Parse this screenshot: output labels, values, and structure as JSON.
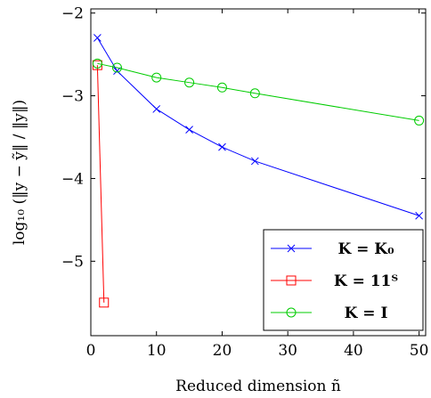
{
  "chart_data": {
    "type": "line",
    "xlabel": "Reduced dimension ñ",
    "ylabel": "log₁₀ (‖y − ỹ‖ / ‖y‖)",
    "xlim": [
      0,
      51
    ],
    "ylim": [
      -5.9,
      -1.95
    ],
    "xticks": [
      0,
      10,
      20,
      30,
      40,
      50
    ],
    "yticks": [
      -2,
      -3,
      -4,
      -5
    ],
    "xtick_labels": [
      "0",
      "10",
      "20",
      "30",
      "40",
      "50"
    ],
    "ytick_labels": [
      "−2",
      "−3",
      "−4",
      "−5"
    ],
    "grid": false,
    "legend_position": "bottom-right",
    "series": [
      {
        "name": "K = K₀",
        "color": "#0000ff",
        "marker": "x-mark",
        "x": [
          1,
          4,
          10,
          15,
          20,
          25,
          50
        ],
        "y": [
          -2.3,
          -2.7,
          -3.16,
          -3.41,
          -3.62,
          -3.79,
          -4.45
        ]
      },
      {
        "name": "K = 11ᵀ",
        "color": "#ff0000",
        "marker": "square",
        "x": [
          1,
          2
        ],
        "y": [
          -2.63,
          -5.5
        ]
      },
      {
        "name": "K = I",
        "color": "#00cc00",
        "marker": "circle",
        "x": [
          1,
          4,
          10,
          15,
          20,
          25,
          50
        ],
        "y": [
          -2.61,
          -2.66,
          -2.78,
          -2.84,
          -2.9,
          -2.97,
          -3.3
        ]
      }
    ]
  }
}
